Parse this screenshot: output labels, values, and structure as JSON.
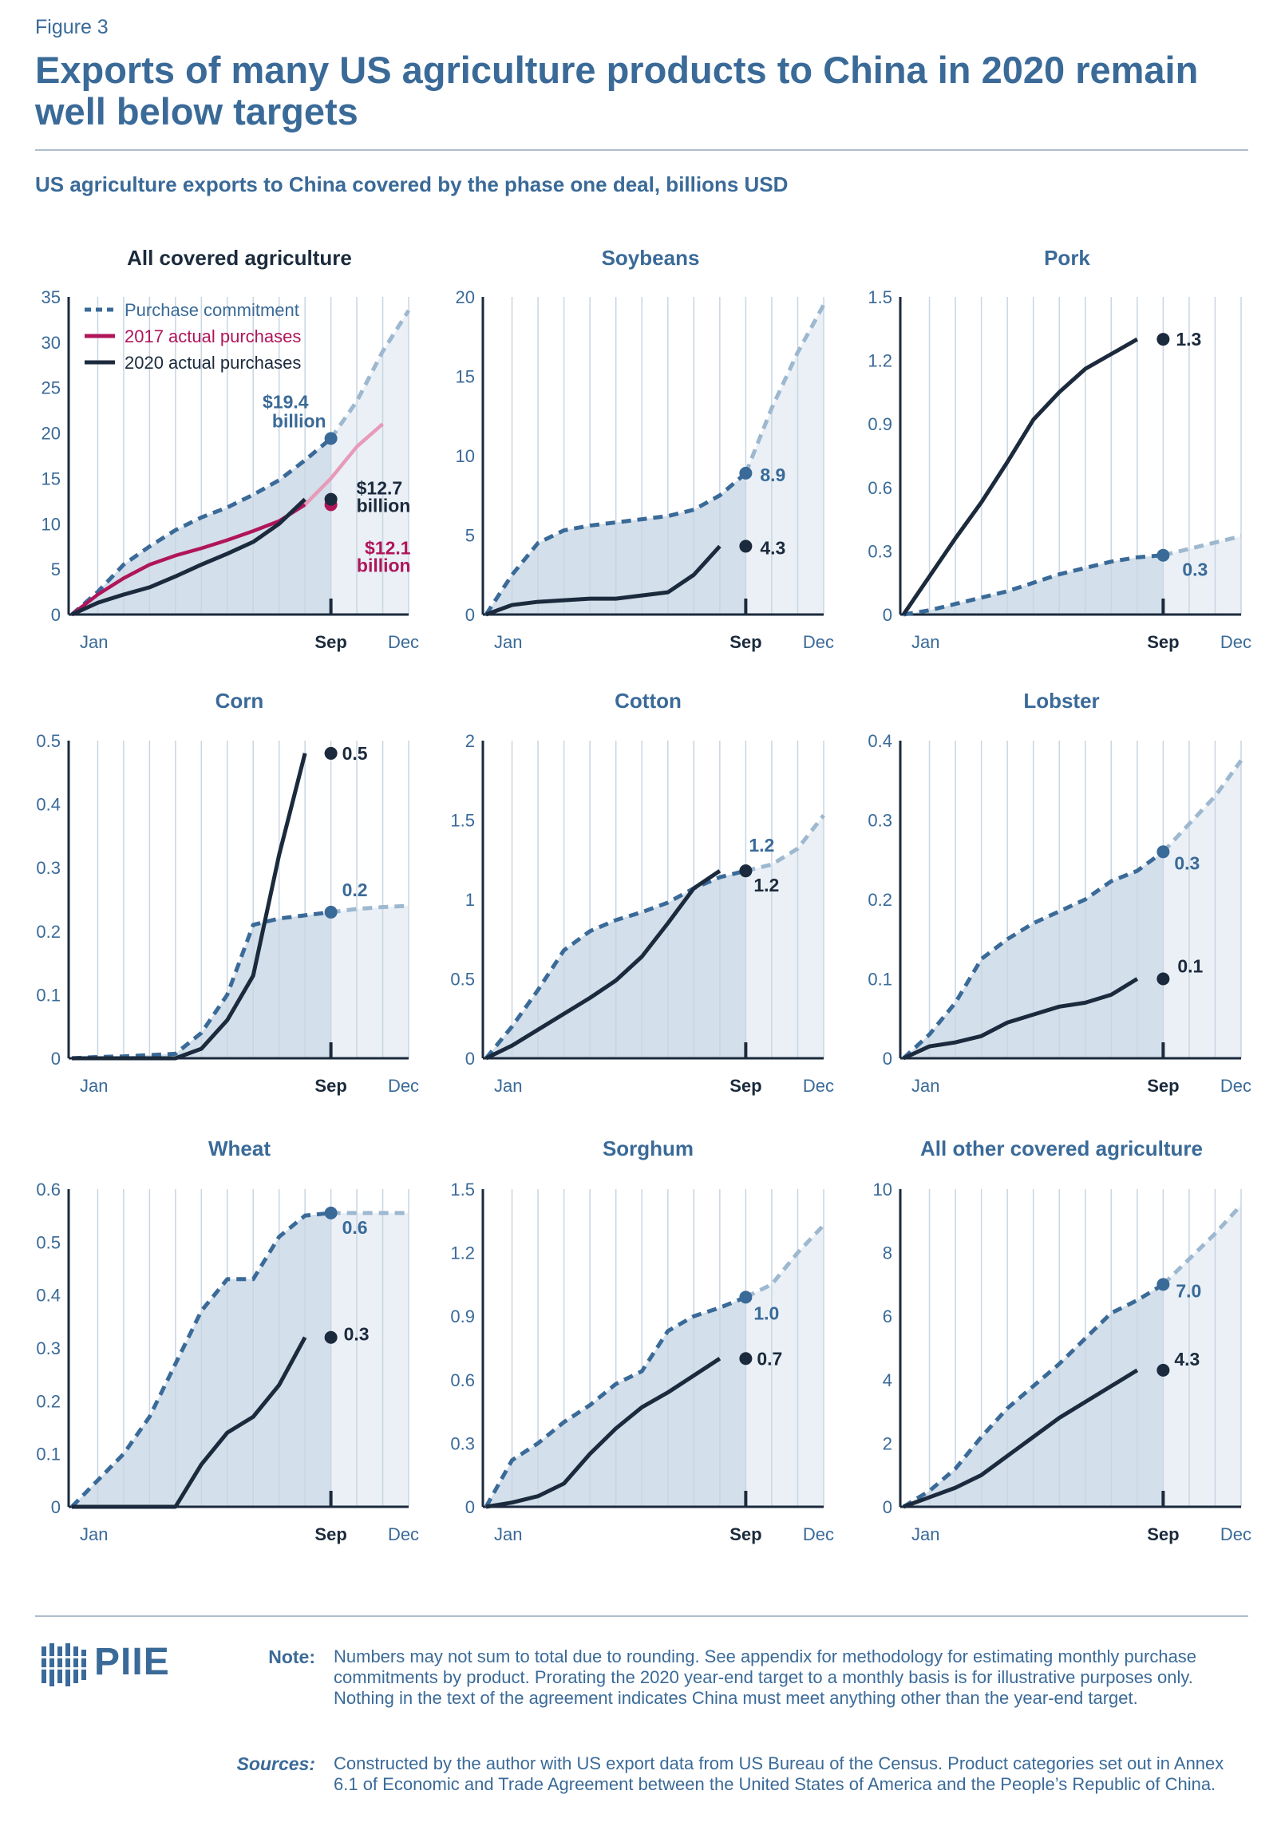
{
  "figure_label": "Figure 3",
  "title": "Exports of many US agriculture products to China in 2020 remain well below targets",
  "subtitle": "US agriculture exports to China covered by the phase one deal, billions USD",
  "legend": {
    "commitment": "Purchase commitment",
    "actual_2017": "2017 actual purchases",
    "actual_2020": "2020 actual purchases"
  },
  "x_tick_labels": [
    "Jan",
    "Sep",
    "Dec"
  ],
  "colors": {
    "commitment": "#3a6a98",
    "commitment_light": "#9db8cf",
    "actual_2020": "#1b2a3c",
    "actual_2017": "#b0155a",
    "actual_2017_light": "#e89ab9",
    "fill_dark": "#d3dfea",
    "fill_light": "#eaf0f6",
    "grid": "#c9d5e1",
    "axis": "#1b2a3c"
  },
  "chart_data": [
    {
      "type": "line",
      "title": "All covered agriculture",
      "yticks": [
        0,
        5,
        10,
        15,
        20,
        25,
        30,
        35
      ],
      "ymax": 35,
      "commitment": [
        0,
        2.5,
        5.5,
        7.5,
        9.3,
        10.7,
        11.8,
        13.2,
        14.8,
        17.0,
        19.4,
        23.5,
        29.0,
        33.5
      ],
      "actual_2020": [
        0,
        1.3,
        2.2,
        3.0,
        4.2,
        5.5,
        6.7,
        8.0,
        10.0,
        12.7
      ],
      "actual_2017": [
        0,
        2.2,
        4.0,
        5.5,
        6.5,
        7.3,
        8.2,
        9.2,
        10.3,
        12.1,
        15.0,
        18.5,
        21.0
      ],
      "labels": [
        {
          "text": "$19.4",
          "series": "commitment"
        },
        {
          "text": "billion",
          "series": "commitment"
        },
        {
          "text": "$12.7",
          "series": "actual_2020"
        },
        {
          "text": "billion",
          "series": "actual_2020"
        },
        {
          "text": "$12.1",
          "series": "actual_2017"
        },
        {
          "text": "billion",
          "series": "actual_2017"
        }
      ]
    },
    {
      "type": "line",
      "title": "Soybeans",
      "yticks": [
        0,
        5,
        10,
        15,
        20
      ],
      "ymax": 20,
      "commitment": [
        0,
        2.5,
        4.5,
        5.3,
        5.6,
        5.8,
        6.0,
        6.2,
        6.6,
        7.5,
        8.9,
        13.0,
        16.5,
        19.5
      ],
      "actual_2020": [
        0,
        0.6,
        0.8,
        0.9,
        1.0,
        1.0,
        1.2,
        1.4,
        2.5,
        4.3
      ],
      "labels": [
        {
          "text": "8.9",
          "series": "commitment"
        },
        {
          "text": "4.3",
          "series": "actual_2020"
        }
      ]
    },
    {
      "type": "line",
      "title": "Pork",
      "yticks": [
        0,
        0.3,
        0.6,
        0.9,
        1.2,
        1.5
      ],
      "ymax": 1.5,
      "commitment": [
        0,
        0.02,
        0.05,
        0.08,
        0.11,
        0.15,
        0.19,
        0.22,
        0.25,
        0.27,
        0.28,
        0.31,
        0.34,
        0.37
      ],
      "actual_2020": [
        0,
        0.18,
        0.36,
        0.53,
        0.72,
        0.92,
        1.05,
        1.16,
        1.23,
        1.3
      ],
      "labels": [
        {
          "text": "0.3",
          "series": "commitment"
        },
        {
          "text": "1.3",
          "series": "actual_2020"
        }
      ]
    },
    {
      "type": "line",
      "title": "Corn",
      "yticks": [
        0,
        0.1,
        0.2,
        0.3,
        0.4,
        0.5
      ],
      "ymax": 0.5,
      "commitment": [
        0,
        0.002,
        0.003,
        0.005,
        0.007,
        0.04,
        0.1,
        0.21,
        0.22,
        0.225,
        0.23,
        0.235,
        0.238,
        0.24
      ],
      "actual_2020": [
        0,
        0,
        0,
        0,
        0,
        0.015,
        0.06,
        0.13,
        0.32,
        0.48
      ],
      "labels": [
        {
          "text": "0.2",
          "series": "commitment"
        },
        {
          "text": "0.5",
          "series": "actual_2020"
        }
      ]
    },
    {
      "type": "line",
      "title": "Cotton",
      "yticks": [
        0,
        0.5,
        1.0,
        1.5,
        2.0
      ],
      "ymax": 2.0,
      "commitment": [
        0,
        0.2,
        0.43,
        0.68,
        0.8,
        0.87,
        0.92,
        0.98,
        1.07,
        1.14,
        1.18,
        1.22,
        1.32,
        1.53
      ],
      "actual_2020": [
        0,
        0.08,
        0.18,
        0.28,
        0.38,
        0.49,
        0.64,
        0.85,
        1.07,
        1.18
      ],
      "labels": [
        {
          "text": "1.2",
          "series": "commitment"
        },
        {
          "text": "1.2",
          "series": "actual_2020"
        }
      ]
    },
    {
      "type": "line",
      "title": "Lobster",
      "yticks": [
        0,
        0.1,
        0.2,
        0.3,
        0.4
      ],
      "ymax": 0.4,
      "commitment": [
        0,
        0.03,
        0.07,
        0.125,
        0.15,
        0.17,
        0.185,
        0.2,
        0.223,
        0.236,
        0.26,
        0.295,
        0.33,
        0.375
      ],
      "actual_2020": [
        0,
        0.015,
        0.02,
        0.028,
        0.045,
        0.055,
        0.065,
        0.07,
        0.08,
        0.1
      ],
      "labels": [
        {
          "text": "0.3",
          "series": "commitment"
        },
        {
          "text": "0.1",
          "series": "actual_2020"
        }
      ]
    },
    {
      "type": "line",
      "title": "Wheat",
      "yticks": [
        0,
        0.1,
        0.2,
        0.3,
        0.4,
        0.5,
        0.6
      ],
      "ymax": 0.6,
      "commitment": [
        0,
        0.05,
        0.1,
        0.17,
        0.27,
        0.37,
        0.43,
        0.43,
        0.51,
        0.55,
        0.555,
        0.555,
        0.555,
        0.555
      ],
      "actual_2020": [
        0,
        0,
        0,
        0,
        0,
        0.08,
        0.14,
        0.17,
        0.23,
        0.32
      ],
      "labels": [
        {
          "text": "0.6",
          "series": "commitment"
        },
        {
          "text": "0.3",
          "series": "actual_2020"
        }
      ]
    },
    {
      "type": "line",
      "title": "Sorghum",
      "yticks": [
        0,
        0.3,
        0.6,
        0.9,
        1.2,
        1.5
      ],
      "ymax": 1.5,
      "commitment": [
        0,
        0.22,
        0.3,
        0.4,
        0.48,
        0.58,
        0.64,
        0.83,
        0.9,
        0.94,
        0.99,
        1.05,
        1.2,
        1.33
      ],
      "actual_2020": [
        0,
        0.02,
        0.05,
        0.11,
        0.25,
        0.37,
        0.47,
        0.54,
        0.62,
        0.7
      ],
      "labels": [
        {
          "text": "1.0",
          "series": "commitment"
        },
        {
          "text": "0.7",
          "series": "actual_2020"
        }
      ]
    },
    {
      "type": "line",
      "title": "All other covered agriculture",
      "yticks": [
        0,
        2,
        4,
        6,
        8,
        10
      ],
      "ymax": 10,
      "commitment": [
        0,
        0.5,
        1.2,
        2.2,
        3.1,
        3.8,
        4.5,
        5.3,
        6.1,
        6.5,
        7.0,
        7.8,
        8.6,
        9.5
      ],
      "actual_2020": [
        0,
        0.3,
        0.6,
        1.0,
        1.6,
        2.2,
        2.8,
        3.3,
        3.8,
        4.3
      ],
      "labels": [
        {
          "text": "7.0",
          "series": "commitment"
        },
        {
          "text": "4.3",
          "series": "actual_2020"
        }
      ]
    }
  ],
  "brand": "PIIE",
  "note_label": "Note:",
  "note_text": "Numbers may not sum to total due to rounding. See appendix for methodology for estimating monthly purchase commitments by product. Prorating the 2020 year-end target to a monthly basis is for illustrative purposes only. Nothing in the text of the agreement indicates China must meet anything other than the year-end target.",
  "sources_label": "Sources:",
  "sources_text": "Constructed by the author with US export data from US Bureau of the Census. Product categories set out in Annex 6.1 of Economic and Trade Agreement between the United States of America and the People’s Republic of China."
}
